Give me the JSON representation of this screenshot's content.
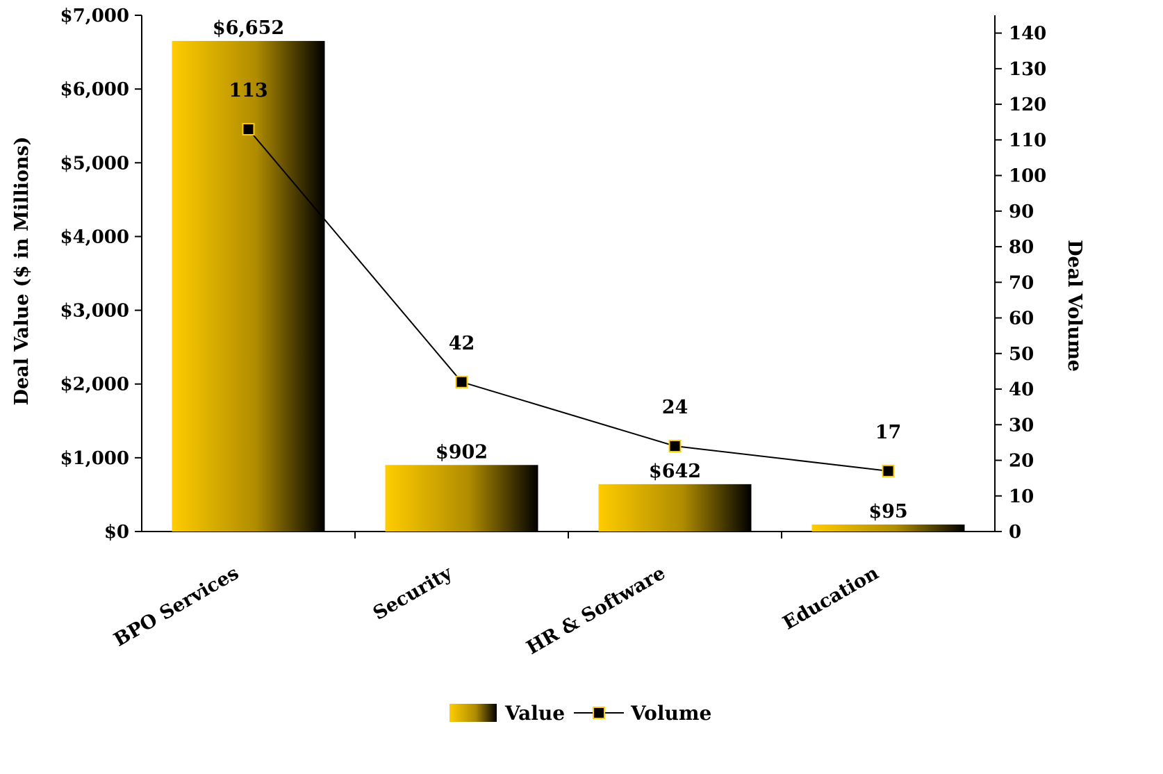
{
  "chart_data": {
    "type": "bar",
    "categories": [
      "BPO Services",
      "Security",
      "HR & Software",
      "Education"
    ],
    "series": [
      {
        "name": "Value",
        "type": "bar",
        "axis": "left",
        "values": [
          6652,
          902,
          642,
          95
        ],
        "labels": [
          "$6,652",
          "$902",
          "$642",
          "$95"
        ]
      },
      {
        "name": "Volume",
        "type": "line",
        "axis": "right",
        "values": [
          113,
          42,
          24,
          17
        ],
        "labels": [
          "113",
          "42",
          "24",
          "17"
        ]
      }
    ],
    "y_left": {
      "label": "Deal Value ($ in Millions)",
      "min": 0,
      "max": 7000,
      "step": 1000,
      "ticks": [
        "$0",
        "$1,000",
        "$2,000",
        "$3,000",
        "$4,000",
        "$5,000",
        "$6,000",
        "$7,000"
      ]
    },
    "y_right": {
      "label": "Deal Volume",
      "min": 0,
      "max": 145,
      "step": 10,
      "ticks": [
        "0",
        "10",
        "20",
        "30",
        "40",
        "50",
        "60",
        "70",
        "80",
        "90",
        "100",
        "110",
        "120",
        "130",
        "140"
      ]
    },
    "xlabel": "",
    "legend": {
      "position": "bottom",
      "items": [
        "Value",
        "Volume"
      ]
    },
    "grid": false,
    "colors": {
      "bar_light": "#FFCC00",
      "bar_mid": "#B08C00",
      "bar_dark": "#000000",
      "line": "#000000",
      "marker_fill": "#000000",
      "marker_edge": "#FFCC00",
      "axis": "#000000"
    }
  }
}
